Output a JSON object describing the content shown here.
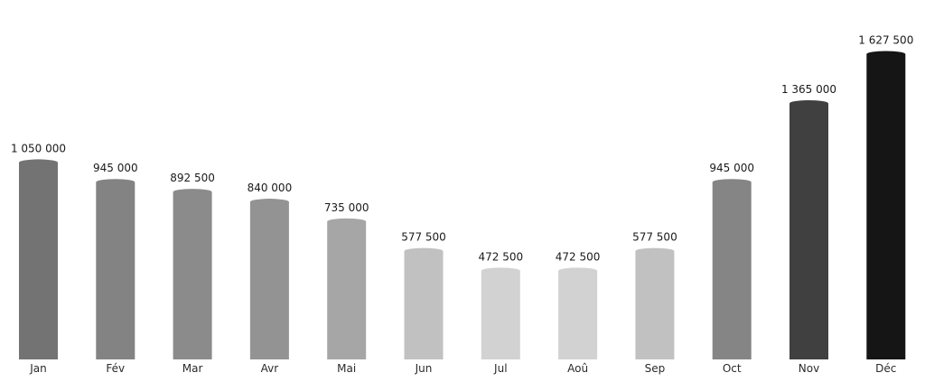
{
  "chart_data": {
    "type": "bar",
    "title": "",
    "xlabel": "",
    "ylabel": "",
    "categories": [
      "Jan",
      "Fév",
      "Mar",
      "Avr",
      "Mai",
      "Jun",
      "Jul",
      "Aoû",
      "Sep",
      "Oct",
      "Nov",
      "Déc"
    ],
    "values": [
      1050000,
      945000,
      892500,
      840000,
      735000,
      577500,
      472500,
      472500,
      577500,
      945000,
      1365000,
      1627500
    ],
    "value_labels": [
      "1 050 000",
      "945 000",
      "892 500",
      "840 000",
      "735 000",
      "577 500",
      "472 500",
      "472 500",
      "577 500",
      "945 000",
      "1 365 000",
      "1 627 500"
    ],
    "bar_colors": [
      "#737373",
      "#838383",
      "#8b8b8b",
      "#939393",
      "#a6a6a6",
      "#c1c1c1",
      "#d2d2d2",
      "#d2d2d2",
      "#c1c1c1",
      "#858585",
      "#404040",
      "#151515"
    ],
    "ylim": [
      0,
      1627500
    ],
    "grid": false,
    "legend": "none"
  }
}
